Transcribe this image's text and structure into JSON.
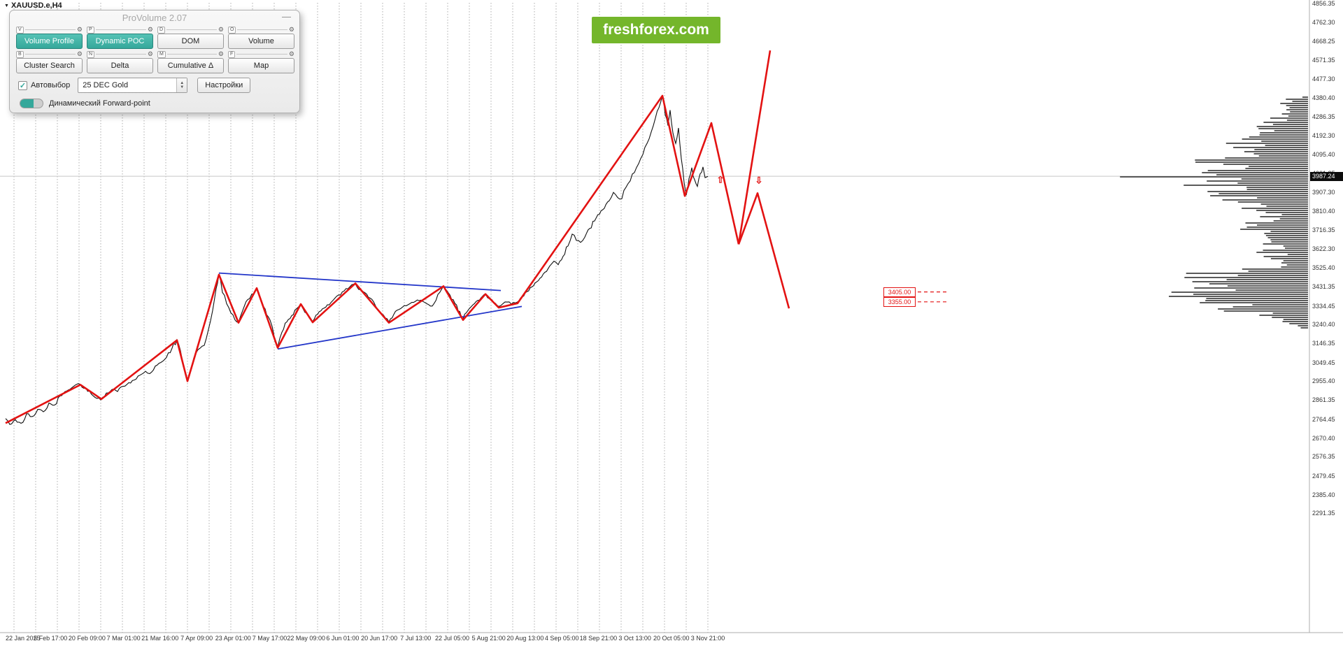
{
  "window": {
    "symbol_label": "XAUUSD.e,H4",
    "banner": "freshforex.com"
  },
  "icons": {
    "gear": "⚙",
    "minimize": "—",
    "symbol_dropdown": "▼",
    "checkbox_check": "✓",
    "spin_up": "▲",
    "spin_down": "▼"
  },
  "colors": {
    "banner_green": "#74b62b",
    "accent_teal": "#35a89b",
    "accent_teal_light": "#55c2b5",
    "signal_red": "#e31212",
    "triangle_blue": "#2336c9",
    "series_black": "#111111",
    "profile_gray": "#3d3d3d",
    "grid_gray": "#999999"
  },
  "panel": {
    "title": "ProVolume 2.07",
    "buttons_row1": [
      {
        "key": "V",
        "label": "Volume Profile",
        "active": true
      },
      {
        "key": "P",
        "label": "Dynamic POC",
        "active": true
      },
      {
        "key": "D",
        "label": "DOM",
        "active": false
      },
      {
        "key": "O",
        "label": "Volume",
        "active": false
      }
    ],
    "buttons_row2": [
      {
        "key": "B",
        "label": "Cluster Search",
        "active": false
      },
      {
        "key": "N",
        "label": "Delta",
        "active": false
      },
      {
        "key": "M",
        "label": "Cumulative Δ",
        "active": false
      },
      {
        "key": "F",
        "label": "Map",
        "active": false
      }
    ],
    "autoselect_label": "Автовыбор",
    "autoselect_checked": true,
    "instrument_value": "25 DEC Gold",
    "settings_label": "Настройки",
    "toggle_label": "Динамический Forward-point"
  },
  "chart_data": {
    "type": "line",
    "title": "XAUUSD.e,H4",
    "ylim": [
      2291.35,
      4856.35
    ],
    "grid": "vertical-dashed",
    "current_price": "3987.24",
    "y_tick_labels": [
      "4856.35",
      "4762.30",
      "4668.25",
      "4571.35",
      "4477.30",
      "4380.40",
      "4286.35",
      "4192.30",
      "4095.40",
      "4001.35",
      "3907.30",
      "3810.40",
      "3716.35",
      "3622.30",
      "3525.40",
      "3431.35",
      "3334.45",
      "3240.40",
      "3146.35",
      "3049.45",
      "2955.40",
      "2861.35",
      "2764.45",
      "2670.40",
      "2576.35",
      "2479.45",
      "2385.40",
      "2291.35"
    ],
    "x_tick_labels": [
      "22 Jan 2025",
      "5 Feb 17:00",
      "20 Feb 09:00",
      "7 Mar 01:00",
      "21 Mar 16:00",
      "7 Apr 09:00",
      "23 Apr 01:00",
      "7 May 17:00",
      "22 May 09:00",
      "6 Jun 01:00",
      "20 Jun 17:00",
      "7 Jul 13:00",
      "22 Jul 05:00",
      "5 Aug 21:00",
      "20 Aug 13:00",
      "4 Sep 05:00",
      "18 Sep 21:00",
      "3 Oct 13:00",
      "20 Oct 05:00",
      "3 Nov 21:00"
    ],
    "support_labels": [
      "3405.00",
      "3355.00"
    ],
    "signal_markers": [
      {
        "x": 1030,
        "price": 3972,
        "glyph": "⇧"
      },
      {
        "x": 1085,
        "price": 3968,
        "glyph": "⇩"
      }
    ],
    "price_series": [
      [
        8,
        2768
      ],
      [
        14,
        2738
      ],
      [
        22,
        2762
      ],
      [
        30,
        2744
      ],
      [
        38,
        2792
      ],
      [
        46,
        2778
      ],
      [
        54,
        2814
      ],
      [
        62,
        2802
      ],
      [
        70,
        2846
      ],
      [
        78,
        2836
      ],
      [
        86,
        2882
      ],
      [
        95,
        2906
      ],
      [
        103,
        2924
      ],
      [
        112,
        2944
      ],
      [
        120,
        2920
      ],
      [
        128,
        2906
      ],
      [
        136,
        2874
      ],
      [
        144,
        2862
      ],
      [
        152,
        2896
      ],
      [
        160,
        2914
      ],
      [
        168,
        2904
      ],
      [
        176,
        2930
      ],
      [
        184,
        2948
      ],
      [
        192,
        2962
      ],
      [
        200,
        2986
      ],
      [
        208,
        3006
      ],
      [
        214,
        2994
      ],
      [
        222,
        3032
      ],
      [
        230,
        3050
      ],
      [
        238,
        3076
      ],
      [
        246,
        3122
      ],
      [
        253,
        3164
      ],
      [
        258,
        3110
      ],
      [
        263,
        3030
      ],
      [
        268,
        2958
      ],
      [
        274,
        3024
      ],
      [
        280,
        3096
      ],
      [
        286,
        3122
      ],
      [
        292,
        3136
      ],
      [
        298,
        3216
      ],
      [
        304,
        3312
      ],
      [
        309,
        3422
      ],
      [
        313,
        3492
      ],
      [
        318,
        3402
      ],
      [
        324,
        3346
      ],
      [
        330,
        3300
      ],
      [
        336,
        3264
      ],
      [
        341,
        3252
      ],
      [
        347,
        3312
      ],
      [
        354,
        3366
      ],
      [
        360,
        3394
      ],
      [
        367,
        3424
      ],
      [
        373,
        3362
      ],
      [
        379,
        3320
      ],
      [
        386,
        3264
      ],
      [
        392,
        3182
      ],
      [
        397,
        3128
      ],
      [
        403,
        3202
      ],
      [
        410,
        3254
      ],
      [
        417,
        3286
      ],
      [
        424,
        3320
      ],
      [
        430,
        3342
      ],
      [
        436,
        3302
      ],
      [
        442,
        3274
      ],
      [
        447,
        3256
      ],
      [
        454,
        3292
      ],
      [
        461,
        3320
      ],
      [
        468,
        3340
      ],
      [
        476,
        3362
      ],
      [
        484,
        3390
      ],
      [
        492,
        3410
      ],
      [
        500,
        3430
      ],
      [
        508,
        3446
      ],
      [
        515,
        3416
      ],
      [
        522,
        3400
      ],
      [
        529,
        3374
      ],
      [
        537,
        3334
      ],
      [
        545,
        3296
      ],
      [
        551,
        3274
      ],
      [
        556,
        3254
      ],
      [
        563,
        3292
      ],
      [
        570,
        3316
      ],
      [
        578,
        3336
      ],
      [
        586,
        3346
      ],
      [
        594,
        3358
      ],
      [
        602,
        3364
      ],
      [
        610,
        3346
      ],
      [
        618,
        3334
      ],
      [
        626,
        3392
      ],
      [
        634,
        3434
      ],
      [
        641,
        3400
      ],
      [
        648,
        3366
      ],
      [
        655,
        3310
      ],
      [
        662,
        3270
      ],
      [
        669,
        3312
      ],
      [
        676,
        3340
      ],
      [
        683,
        3362
      ],
      [
        690,
        3384
      ],
      [
        694,
        3394
      ],
      [
        700,
        3370
      ],
      [
        706,
        3352
      ],
      [
        713,
        3332
      ],
      [
        719,
        3346
      ],
      [
        725,
        3354
      ],
      [
        731,
        3344
      ],
      [
        737,
        3350
      ],
      [
        744,
        3374
      ],
      [
        751,
        3400
      ],
      [
        758,
        3426
      ],
      [
        765,
        3450
      ],
      [
        772,
        3474
      ],
      [
        779,
        3504
      ],
      [
        786,
        3536
      ],
      [
        792,
        3560
      ],
      [
        798,
        3542
      ],
      [
        805,
        3584
      ],
      [
        812,
        3636
      ],
      [
        818,
        3696
      ],
      [
        824,
        3664
      ],
      [
        830,
        3654
      ],
      [
        836,
        3680
      ],
      [
        843,
        3724
      ],
      [
        850,
        3762
      ],
      [
        857,
        3796
      ],
      [
        864,
        3826
      ],
      [
        871,
        3864
      ],
      [
        877,
        3906
      ],
      [
        883,
        3880
      ],
      [
        889,
        3874
      ],
      [
        895,
        3932
      ],
      [
        901,
        3964
      ],
      [
        907,
        4006
      ],
      [
        913,
        4050
      ],
      [
        919,
        4096
      ],
      [
        925,
        4152
      ],
      [
        931,
        4210
      ],
      [
        937,
        4280
      ],
      [
        942,
        4332
      ],
      [
        947,
        4392
      ],
      [
        951,
        4296
      ],
      [
        955,
        4242
      ],
      [
        958,
        4320
      ],
      [
        962,
        4206
      ],
      [
        966,
        4152
      ],
      [
        970,
        4230
      ],
      [
        974,
        4076
      ],
      [
        978,
        3956
      ],
      [
        981,
        3892
      ],
      [
        985,
        3976
      ],
      [
        989,
        4030
      ],
      [
        993,
        3970
      ],
      [
        997,
        3936
      ],
      [
        1001,
        4000
      ],
      [
        1005,
        4034
      ],
      [
        1008,
        3980
      ],
      [
        1012,
        3987
      ]
    ],
    "red_forecast_lines": [
      [
        [
          8,
          2745
        ],
        [
          115,
          2938
        ],
        [
          145,
          2866
        ],
        [
          253,
          3162
        ],
        [
          268,
          2956
        ],
        [
          313,
          3492
        ],
        [
          341,
          3250
        ],
        [
          367,
          3424
        ],
        [
          397,
          3124
        ],
        [
          430,
          3344
        ],
        [
          447,
          3252
        ],
        [
          508,
          3448
        ],
        [
          556,
          3250
        ],
        [
          634,
          3434
        ],
        [
          662,
          3264
        ],
        [
          694,
          3394
        ],
        [
          713,
          3326
        ],
        [
          740,
          3348
        ],
        [
          947,
          4392
        ],
        [
          979,
          3888
        ],
        [
          1017,
          4255
        ],
        [
          1056,
          3645
        ]
      ],
      [
        [
          1056,
          3645
        ],
        [
          1101,
          4620
        ]
      ],
      [
        [
          1056,
          3645
        ],
        [
          1083,
          3902
        ],
        [
          1128,
          3322
        ]
      ]
    ],
    "blue_triangle_lines": [
      [
        [
          313,
          3500
        ],
        [
          716,
          3412
        ]
      ],
      [
        [
          397,
          3118
        ],
        [
          746,
          3332
        ]
      ]
    ],
    "volume_profile_envelope": [
      [
        138,
        18
      ],
      [
        148,
        50
      ],
      [
        158,
        42
      ],
      [
        168,
        68
      ],
      [
        178,
        92
      ],
      [
        188,
        118
      ],
      [
        196,
        148
      ],
      [
        204,
        128
      ],
      [
        212,
        168
      ],
      [
        220,
        148
      ],
      [
        228,
        182
      ],
      [
        236,
        140
      ],
      [
        244,
        172
      ],
      [
        252,
        205
      ],
      [
        260,
        168
      ],
      [
        268,
        150
      ],
      [
        276,
        168
      ],
      [
        284,
        128
      ],
      [
        292,
        108
      ],
      [
        300,
        92
      ],
      [
        308,
        84
      ],
      [
        316,
        98
      ],
      [
        324,
        112
      ],
      [
        332,
        128
      ],
      [
        340,
        104
      ],
      [
        348,
        92
      ],
      [
        356,
        78
      ],
      [
        364,
        68
      ],
      [
        372,
        64
      ],
      [
        380,
        74
      ],
      [
        388,
        126
      ],
      [
        396,
        158
      ],
      [
        404,
        182
      ],
      [
        412,
        206
      ],
      [
        420,
        218
      ],
      [
        428,
        192
      ],
      [
        436,
        168
      ],
      [
        444,
        128
      ],
      [
        452,
        88
      ],
      [
        460,
        52
      ],
      [
        468,
        22
      ]
    ]
  }
}
